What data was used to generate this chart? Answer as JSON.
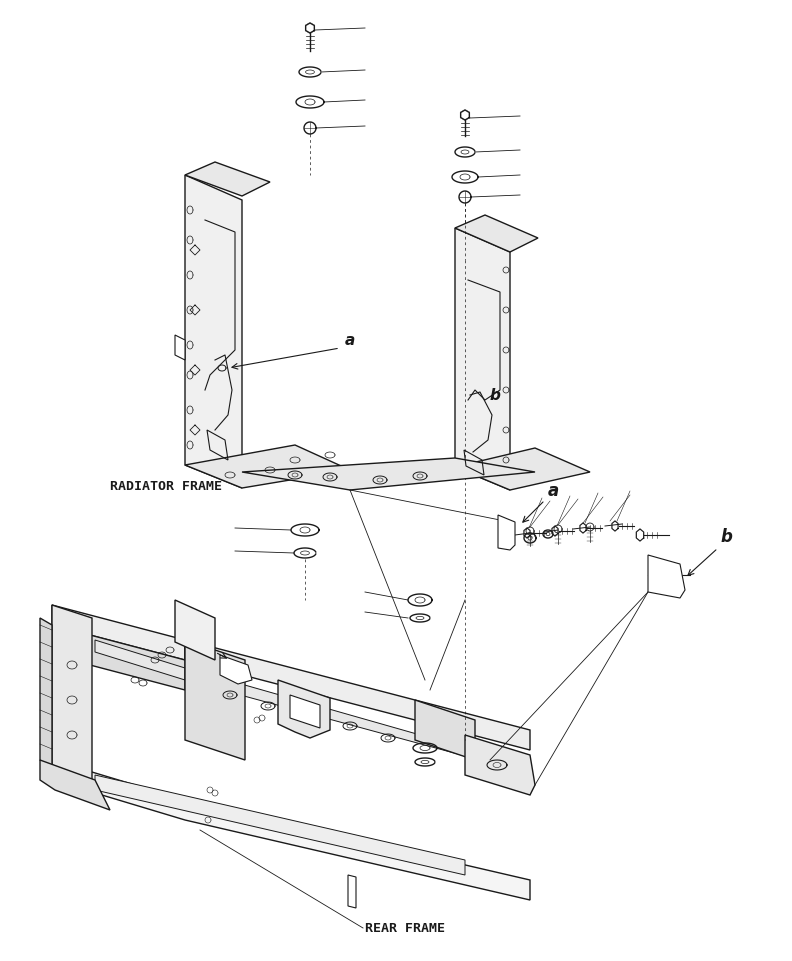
{
  "background_color": "#ffffff",
  "line_color": "#1a1a1a",
  "labels": {
    "radiator_frame": "RADIATOR FRAME",
    "rear_frame": "REAR FRAME",
    "a1": "a",
    "b1": "b",
    "a2": "a",
    "b2": "b"
  },
  "figsize": [
    7.92,
    9.61
  ],
  "dpi": 100
}
